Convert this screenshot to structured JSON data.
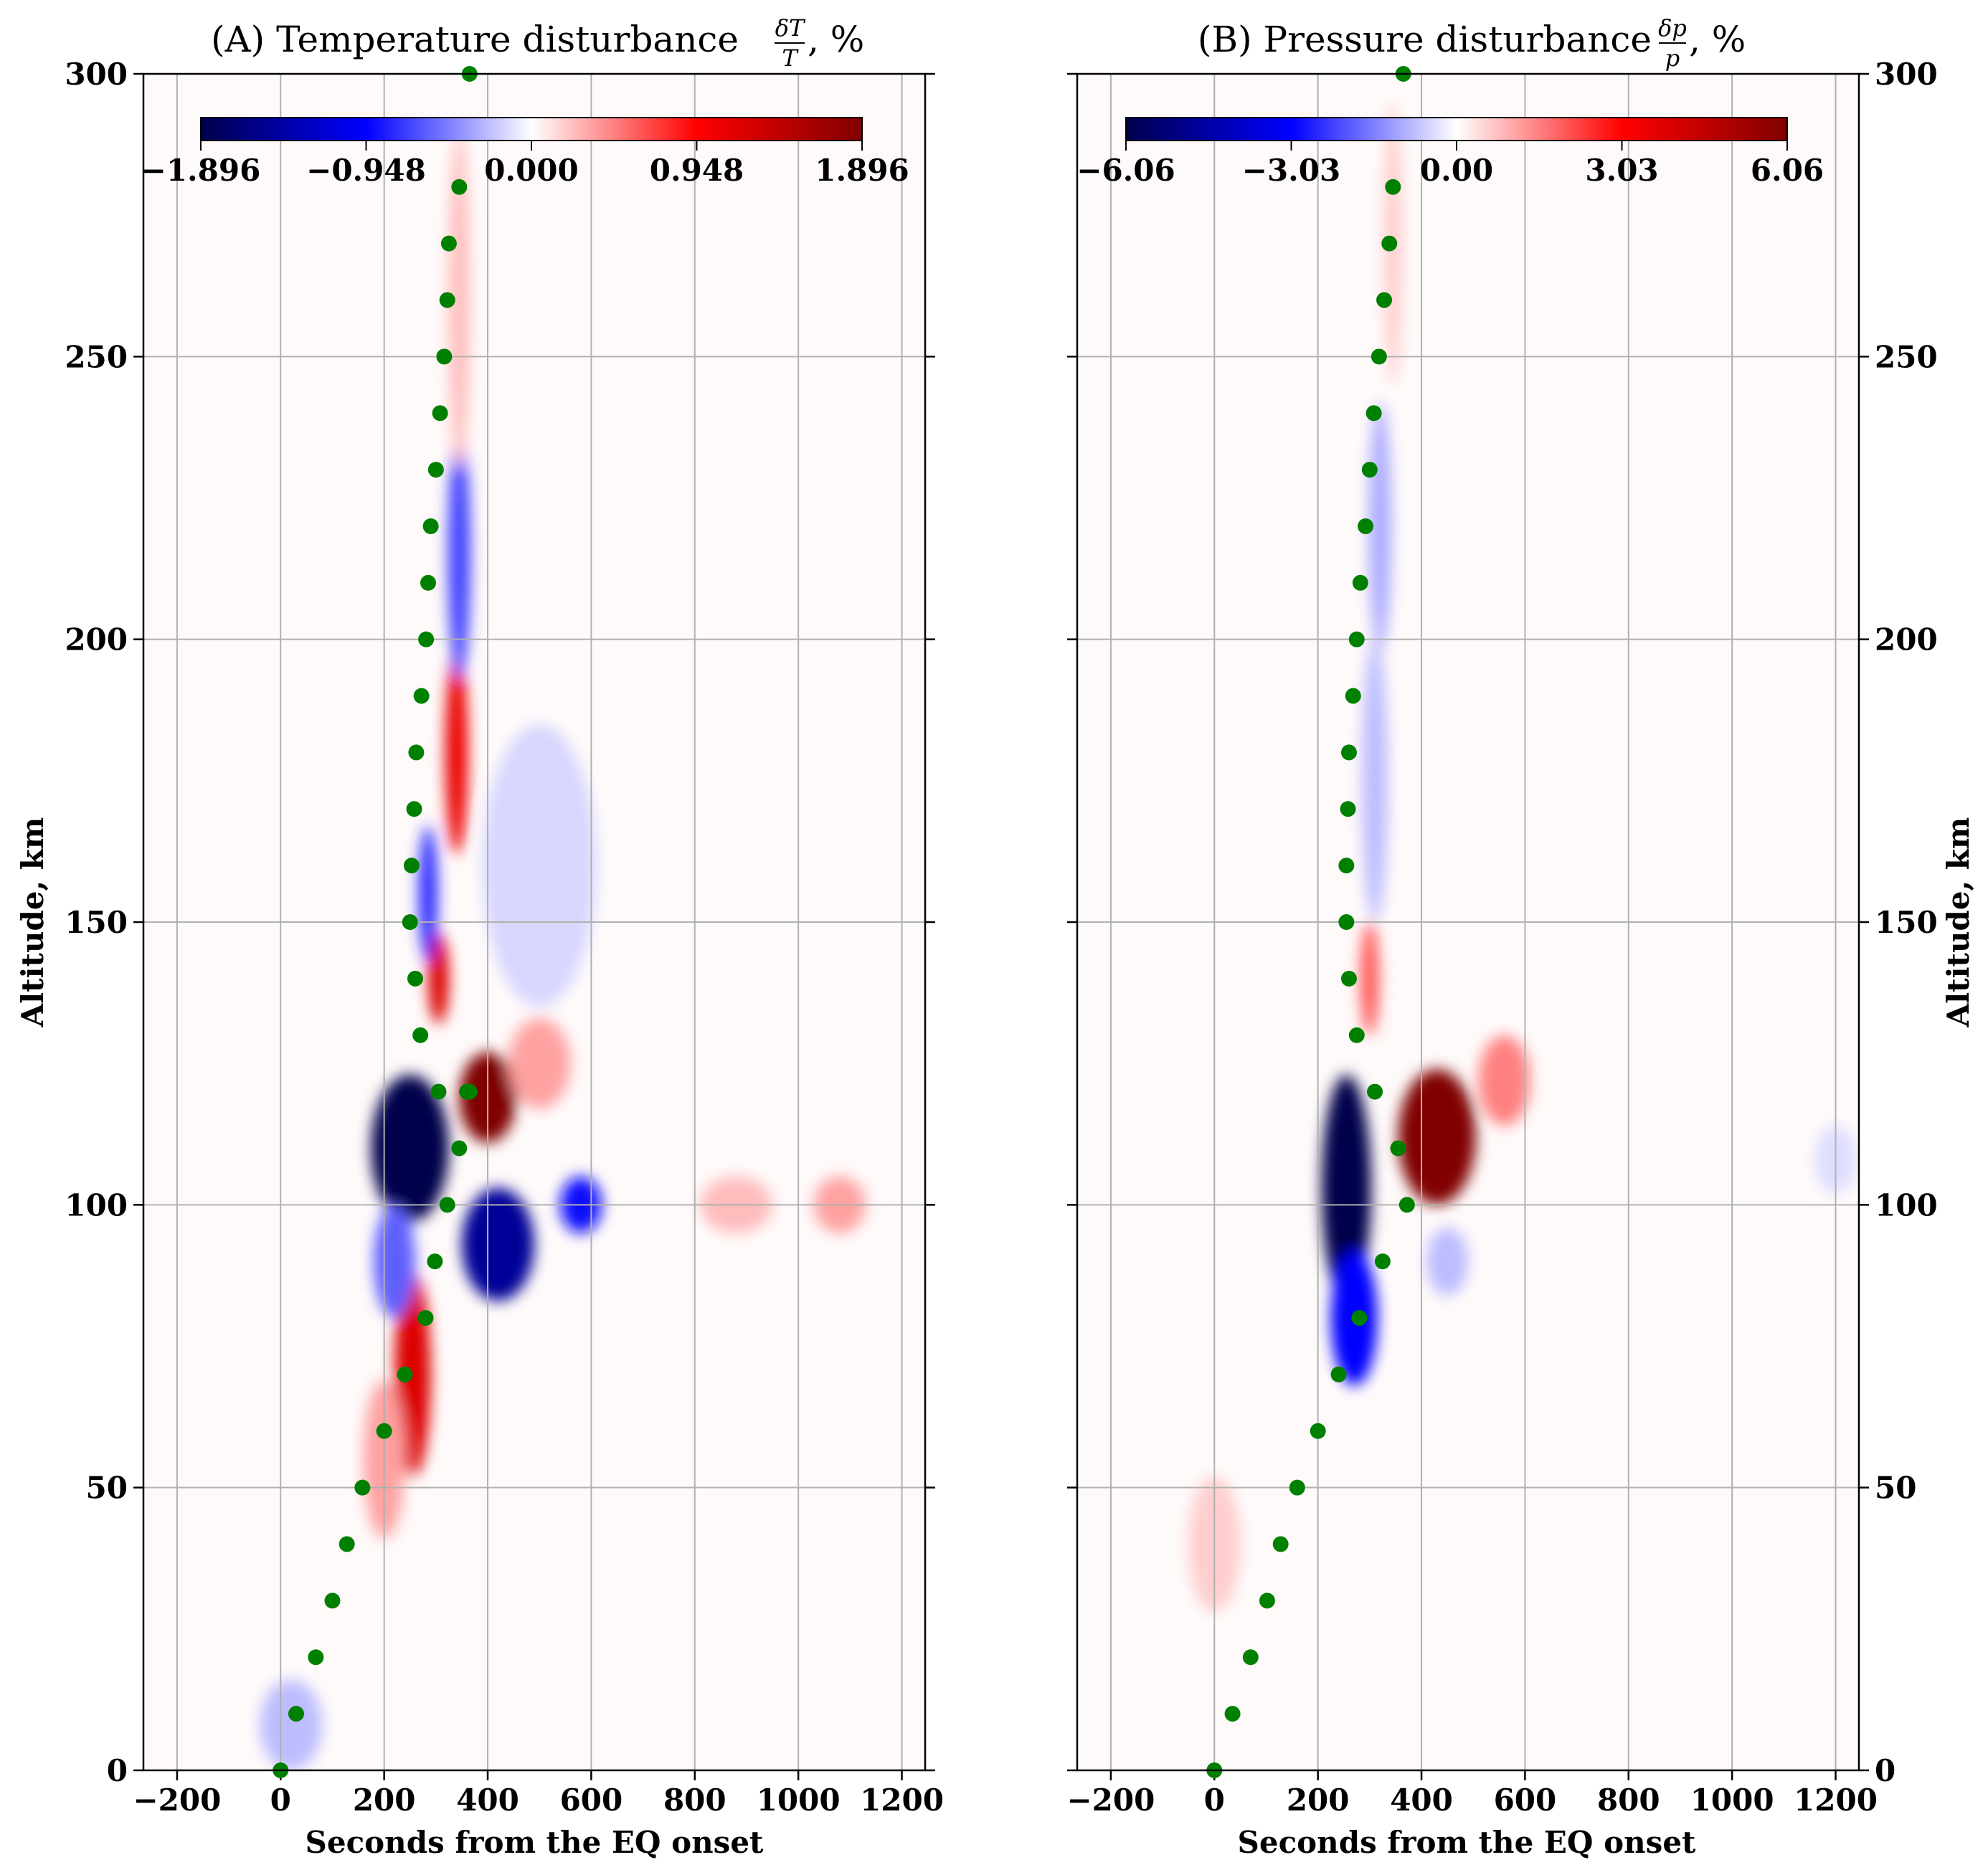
{
  "figure": {
    "panels": [
      {
        "id": "A",
        "title_main": "(A) Temperature disturbance",
        "title_frac_num": "δT",
        "title_frac_den": "T",
        "title_suffix": ", %",
        "xlabel": "Seconds from the EQ onset",
        "ylabel": "Altitude, km",
        "ylabel_side": "left",
        "colorbar": {
          "ticks": [
            "−1.896",
            "−0.948",
            "0.000",
            "0.948",
            "1.896"
          ],
          "range": [
            -1.896,
            1.896
          ]
        }
      },
      {
        "id": "B",
        "title_main": "(B) Pressure disturbance",
        "title_frac_num": "δp",
        "title_frac_den": "p",
        "title_suffix": ", %",
        "xlabel": "Seconds from the EQ onset",
        "ylabel": "Altitude, km",
        "ylabel_side": "right",
        "colorbar": {
          "ticks": [
            "−6.06",
            "−3.03",
            "0.00",
            "3.03",
            "6.06"
          ],
          "range": [
            -6.06,
            6.06
          ]
        }
      }
    ],
    "x_ticks": [
      "−200",
      "0",
      "200",
      "400",
      "600",
      "800",
      "1000",
      "1200"
    ],
    "y_ticks": [
      "0",
      "50",
      "100",
      "150",
      "200",
      "250",
      "300"
    ]
  },
  "chart_data": [
    {
      "type": "heatmap",
      "title": "(A) Temperature disturbance δT/T, %",
      "xlabel": "Seconds from the EQ onset",
      "ylabel": "Altitude, km",
      "xlim": [
        -265,
        1245
      ],
      "ylim": [
        0,
        300
      ],
      "x_ticks": [
        -200,
        0,
        200,
        400,
        600,
        800,
        1000,
        1200
      ],
      "y_ticks": [
        0,
        50,
        100,
        150,
        200,
        250,
        300
      ],
      "grid": true,
      "colormap": "seismic",
      "color_range": [
        -1.896,
        1.896
      ],
      "features": [
        {
          "x": 250,
          "y": 110,
          "value": -1.9,
          "sx": 75,
          "sy": 13
        },
        {
          "x": 420,
          "y": 93,
          "value": -1.5,
          "sx": 70,
          "sy": 10
        },
        {
          "x": 400,
          "y": 119,
          "value": 1.9,
          "sx": 55,
          "sy": 8
        },
        {
          "x": 255,
          "y": 70,
          "value": 1.2,
          "sx": 35,
          "sy": 18
        },
        {
          "x": 200,
          "y": 55,
          "value": 0.35,
          "sx": 40,
          "sy": 14
        },
        {
          "x": 305,
          "y": 140,
          "value": 1.2,
          "sx": 20,
          "sy": 8
        },
        {
          "x": 285,
          "y": 155,
          "value": -0.8,
          "sx": 18,
          "sy": 12
        },
        {
          "x": 340,
          "y": 180,
          "value": 1.1,
          "sx": 22,
          "sy": 18
        },
        {
          "x": 345,
          "y": 215,
          "value": -0.7,
          "sx": 22,
          "sy": 22
        },
        {
          "x": 345,
          "y": 260,
          "value": 0.25,
          "sx": 20,
          "sy": 30
        },
        {
          "x": 220,
          "y": 90,
          "value": -0.6,
          "sx": 40,
          "sy": 10
        },
        {
          "x": 580,
          "y": 100,
          "value": -0.9,
          "sx": 40,
          "sy": 5
        },
        {
          "x": 500,
          "y": 125,
          "value": 0.35,
          "sx": 60,
          "sy": 8
        },
        {
          "x": 880,
          "y": 100,
          "value": 0.25,
          "sx": 70,
          "sy": 5
        },
        {
          "x": 1080,
          "y": 100,
          "value": 0.35,
          "sx": 50,
          "sy": 5
        },
        {
          "x": 20,
          "y": 8,
          "value": -0.25,
          "sx": 60,
          "sy": 8
        },
        {
          "x": 500,
          "y": 160,
          "value": -0.15,
          "sx": 110,
          "sy": 25
        }
      ],
      "series": [
        {
          "name": "wave front",
          "marker": "circle",
          "color": "#008000",
          "x": [
            0,
            30,
            68,
            100,
            128,
            158,
            200,
            240,
            280,
            298,
            322,
            345,
            360,
            365,
            305,
            270,
            260,
            250,
            253,
            258,
            262,
            272,
            281,
            285,
            290,
            300,
            308,
            316,
            322,
            325,
            345,
            365
          ],
          "y": [
            0,
            10,
            20,
            30,
            40,
            50,
            60,
            70,
            80,
            90,
            100,
            110,
            120,
            120,
            120,
            130,
            140,
            150,
            160,
            170,
            180,
            190,
            200,
            210,
            220,
            230,
            240,
            250,
            260,
            270,
            280,
            300
          ]
        }
      ]
    },
    {
      "type": "heatmap",
      "title": "(B) Pressure disturbance δp/p, %",
      "xlabel": "Seconds from the EQ onset",
      "ylabel": "Altitude, km",
      "xlim": [
        -265,
        1245
      ],
      "ylim": [
        0,
        300
      ],
      "x_ticks": [
        -200,
        0,
        200,
        400,
        600,
        800,
        1000,
        1200
      ],
      "y_ticks": [
        0,
        50,
        100,
        150,
        200,
        250,
        300
      ],
      "grid": true,
      "colormap": "seismic",
      "color_range": [
        -6.06,
        6.06
      ],
      "features": [
        {
          "x": 255,
          "y": 103,
          "value": -6.06,
          "sx": 48,
          "sy": 20
        },
        {
          "x": 270,
          "y": 80,
          "value": -3.0,
          "sx": 45,
          "sy": 12
        },
        {
          "x": 430,
          "y": 112,
          "value": 6.06,
          "sx": 75,
          "sy": 12
        },
        {
          "x": 560,
          "y": 122,
          "value": 1.5,
          "sx": 50,
          "sy": 8
        },
        {
          "x": 300,
          "y": 140,
          "value": 2.0,
          "sx": 18,
          "sy": 10
        },
        {
          "x": 310,
          "y": 175,
          "value": -0.8,
          "sx": 25,
          "sy": 25
        },
        {
          "x": 320,
          "y": 220,
          "value": -1.0,
          "sx": 22,
          "sy": 22
        },
        {
          "x": 345,
          "y": 270,
          "value": 0.6,
          "sx": 18,
          "sy": 25
        },
        {
          "x": 0,
          "y": 40,
          "value": 0.6,
          "sx": 50,
          "sy": 12
        },
        {
          "x": 450,
          "y": 90,
          "value": -0.8,
          "sx": 40,
          "sy": 6
        },
        {
          "x": 1200,
          "y": 108,
          "value": -0.4,
          "sx": 40,
          "sy": 6
        }
      ],
      "series": [
        {
          "name": "wave front",
          "marker": "circle",
          "color": "#008000",
          "x": [
            0,
            35,
            70,
            102,
            128,
            160,
            200,
            240,
            280,
            325,
            372,
            355,
            310,
            275,
            260,
            255,
            255,
            258,
            260,
            268,
            275,
            282,
            292,
            300,
            308,
            318,
            328,
            338,
            345,
            365
          ],
          "y": [
            0,
            10,
            20,
            30,
            40,
            50,
            60,
            70,
            80,
            90,
            100,
            110,
            120,
            130,
            140,
            150,
            160,
            170,
            180,
            190,
            200,
            210,
            220,
            230,
            240,
            250,
            260,
            270,
            280,
            300
          ]
        }
      ]
    }
  ]
}
